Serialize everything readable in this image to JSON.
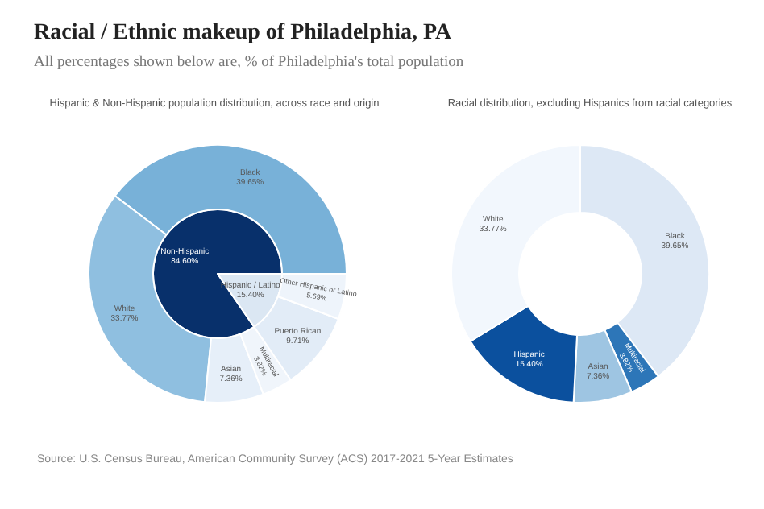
{
  "chart_data": [
    {
      "type": "pie",
      "title": "Racial / Ethnic makeup of Philadelphia, PA",
      "subtitle": "All percentages shown below are, % of Philadelphia's total population",
      "annotations": [
        "Hispanic & Non-Hispanic population distribution, across race and origin"
      ],
      "categories": [
        "Non-Hispanic",
        "Hispanic / Latino"
      ],
      "values": [
        84.6,
        15.4
      ],
      "value_labels": [
        "84.60%",
        "15.40%"
      ],
      "colors": [
        "#08306b",
        "#dbe7f3"
      ]
    },
    {
      "type": "donut",
      "categories": [
        "Black",
        "White",
        "Asian",
        "Multiracial",
        "Puerto Rican",
        "Other Hispanic or Latino"
      ],
      "values": [
        39.65,
        33.77,
        7.36,
        3.82,
        9.71,
        5.69
      ],
      "value_labels": [
        "39.65%",
        "33.77%",
        "7.36%",
        "3.82%",
        "9.71%",
        "5.69%"
      ],
      "colors": [
        "#78b1d8",
        "#8fbfe0",
        "#e6eff9",
        "#f0f5fb",
        "#e2ecf7",
        "#eef4fb"
      ]
    },
    {
      "type": "donut",
      "annotations": [
        "Racial distribution, excluding Hispanics from racial categories",
        "Source: U.S. Census Bureau, American Community Survey (ACS) 2017-2021 5-Year Estimates"
      ],
      "categories": [
        "Black",
        "Multiracial",
        "Asian",
        "Hispanic",
        "White"
      ],
      "values": [
        39.65,
        3.82,
        7.36,
        15.4,
        33.77
      ],
      "value_labels": [
        "39.65%",
        "3.82%",
        "7.36%",
        "15.40%",
        "33.77%"
      ],
      "colors": [
        "#dde8f5",
        "#2d76b8",
        "#9ec5e2",
        "#0b509e",
        "#f2f7fd"
      ]
    }
  ]
}
